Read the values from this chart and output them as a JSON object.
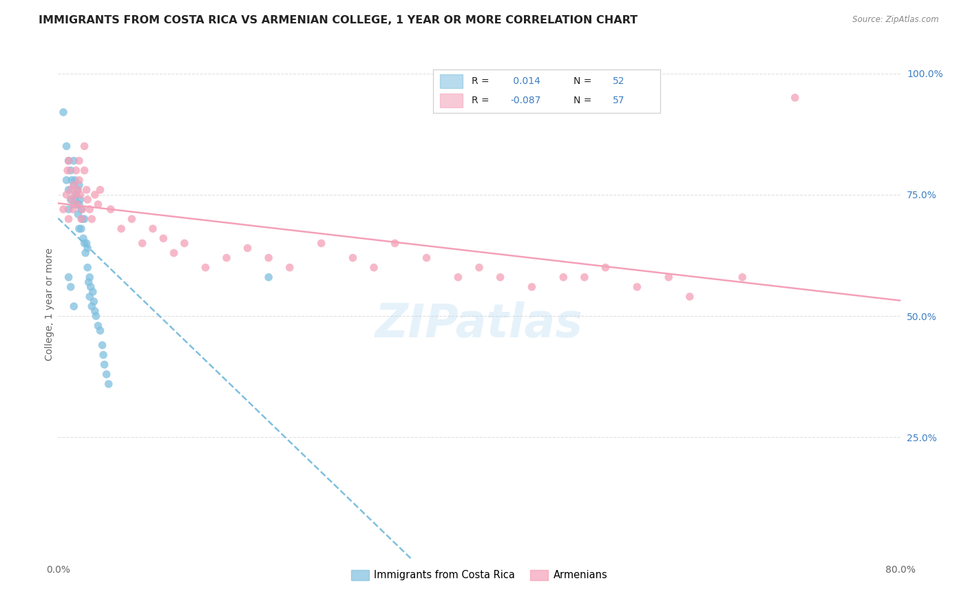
{
  "title": "IMMIGRANTS FROM COSTA RICA VS ARMENIAN COLLEGE, 1 YEAR OR MORE CORRELATION CHART",
  "source_text": "Source: ZipAtlas.com",
  "ylabel": "College, 1 year or more",
  "xlim": [
    0.0,
    0.8
  ],
  "ylim": [
    0.0,
    1.05
  ],
  "ytick_positions_right": [
    0.0,
    0.25,
    0.5,
    0.75,
    1.0
  ],
  "ytick_labels_right": [
    "",
    "25.0%",
    "50.0%",
    "75.0%",
    "100.0%"
  ],
  "blue_color": "#7fbfdf",
  "pink_color": "#f4a0b8",
  "text_color_blue": "#3d7fc4",
  "watermark": "ZIPatlas",
  "blue_x": [
    0.005,
    0.008,
    0.008,
    0.01,
    0.01,
    0.01,
    0.012,
    0.012,
    0.013,
    0.015,
    0.015,
    0.015,
    0.016,
    0.016,
    0.017,
    0.018,
    0.018,
    0.019,
    0.02,
    0.02,
    0.02,
    0.021,
    0.022,
    0.022,
    0.023,
    0.024,
    0.025,
    0.025,
    0.026,
    0.027,
    0.028,
    0.028,
    0.029,
    0.03,
    0.03,
    0.031,
    0.032,
    0.033,
    0.034,
    0.035,
    0.036,
    0.038,
    0.04,
    0.042,
    0.043,
    0.044,
    0.046,
    0.048,
    0.01,
    0.012,
    0.015,
    0.2
  ],
  "blue_y": [
    0.92,
    0.85,
    0.78,
    0.82,
    0.76,
    0.72,
    0.8,
    0.74,
    0.78,
    0.82,
    0.77,
    0.73,
    0.78,
    0.74,
    0.75,
    0.76,
    0.73,
    0.71,
    0.77,
    0.73,
    0.68,
    0.74,
    0.72,
    0.68,
    0.7,
    0.66,
    0.65,
    0.7,
    0.63,
    0.65,
    0.6,
    0.64,
    0.57,
    0.58,
    0.54,
    0.56,
    0.52,
    0.55,
    0.53,
    0.51,
    0.5,
    0.48,
    0.47,
    0.44,
    0.42,
    0.4,
    0.38,
    0.36,
    0.58,
    0.56,
    0.52,
    0.58
  ],
  "pink_x": [
    0.005,
    0.008,
    0.009,
    0.01,
    0.01,
    0.012,
    0.013,
    0.014,
    0.015,
    0.016,
    0.017,
    0.018,
    0.019,
    0.02,
    0.02,
    0.021,
    0.022,
    0.023,
    0.025,
    0.025,
    0.027,
    0.028,
    0.03,
    0.032,
    0.035,
    0.038,
    0.04,
    0.05,
    0.06,
    0.07,
    0.08,
    0.09,
    0.1,
    0.11,
    0.12,
    0.14,
    0.16,
    0.18,
    0.2,
    0.22,
    0.25,
    0.28,
    0.3,
    0.32,
    0.35,
    0.38,
    0.4,
    0.42,
    0.45,
    0.48,
    0.5,
    0.52,
    0.55,
    0.58,
    0.6,
    0.65,
    0.7
  ],
  "pink_y": [
    0.72,
    0.75,
    0.8,
    0.7,
    0.82,
    0.76,
    0.74,
    0.72,
    0.77,
    0.75,
    0.8,
    0.73,
    0.76,
    0.78,
    0.82,
    0.75,
    0.7,
    0.72,
    0.85,
    0.8,
    0.76,
    0.74,
    0.72,
    0.7,
    0.75,
    0.73,
    0.76,
    0.72,
    0.68,
    0.7,
    0.65,
    0.68,
    0.66,
    0.63,
    0.65,
    0.6,
    0.62,
    0.64,
    0.62,
    0.6,
    0.65,
    0.62,
    0.6,
    0.65,
    0.62,
    0.58,
    0.6,
    0.58,
    0.56,
    0.58,
    0.58,
    0.6,
    0.56,
    0.58,
    0.54,
    0.58,
    0.95
  ],
  "background_color": "#ffffff",
  "grid_color": "#e0e0e0",
  "title_fontsize": 11.5,
  "axis_fontsize": 10
}
